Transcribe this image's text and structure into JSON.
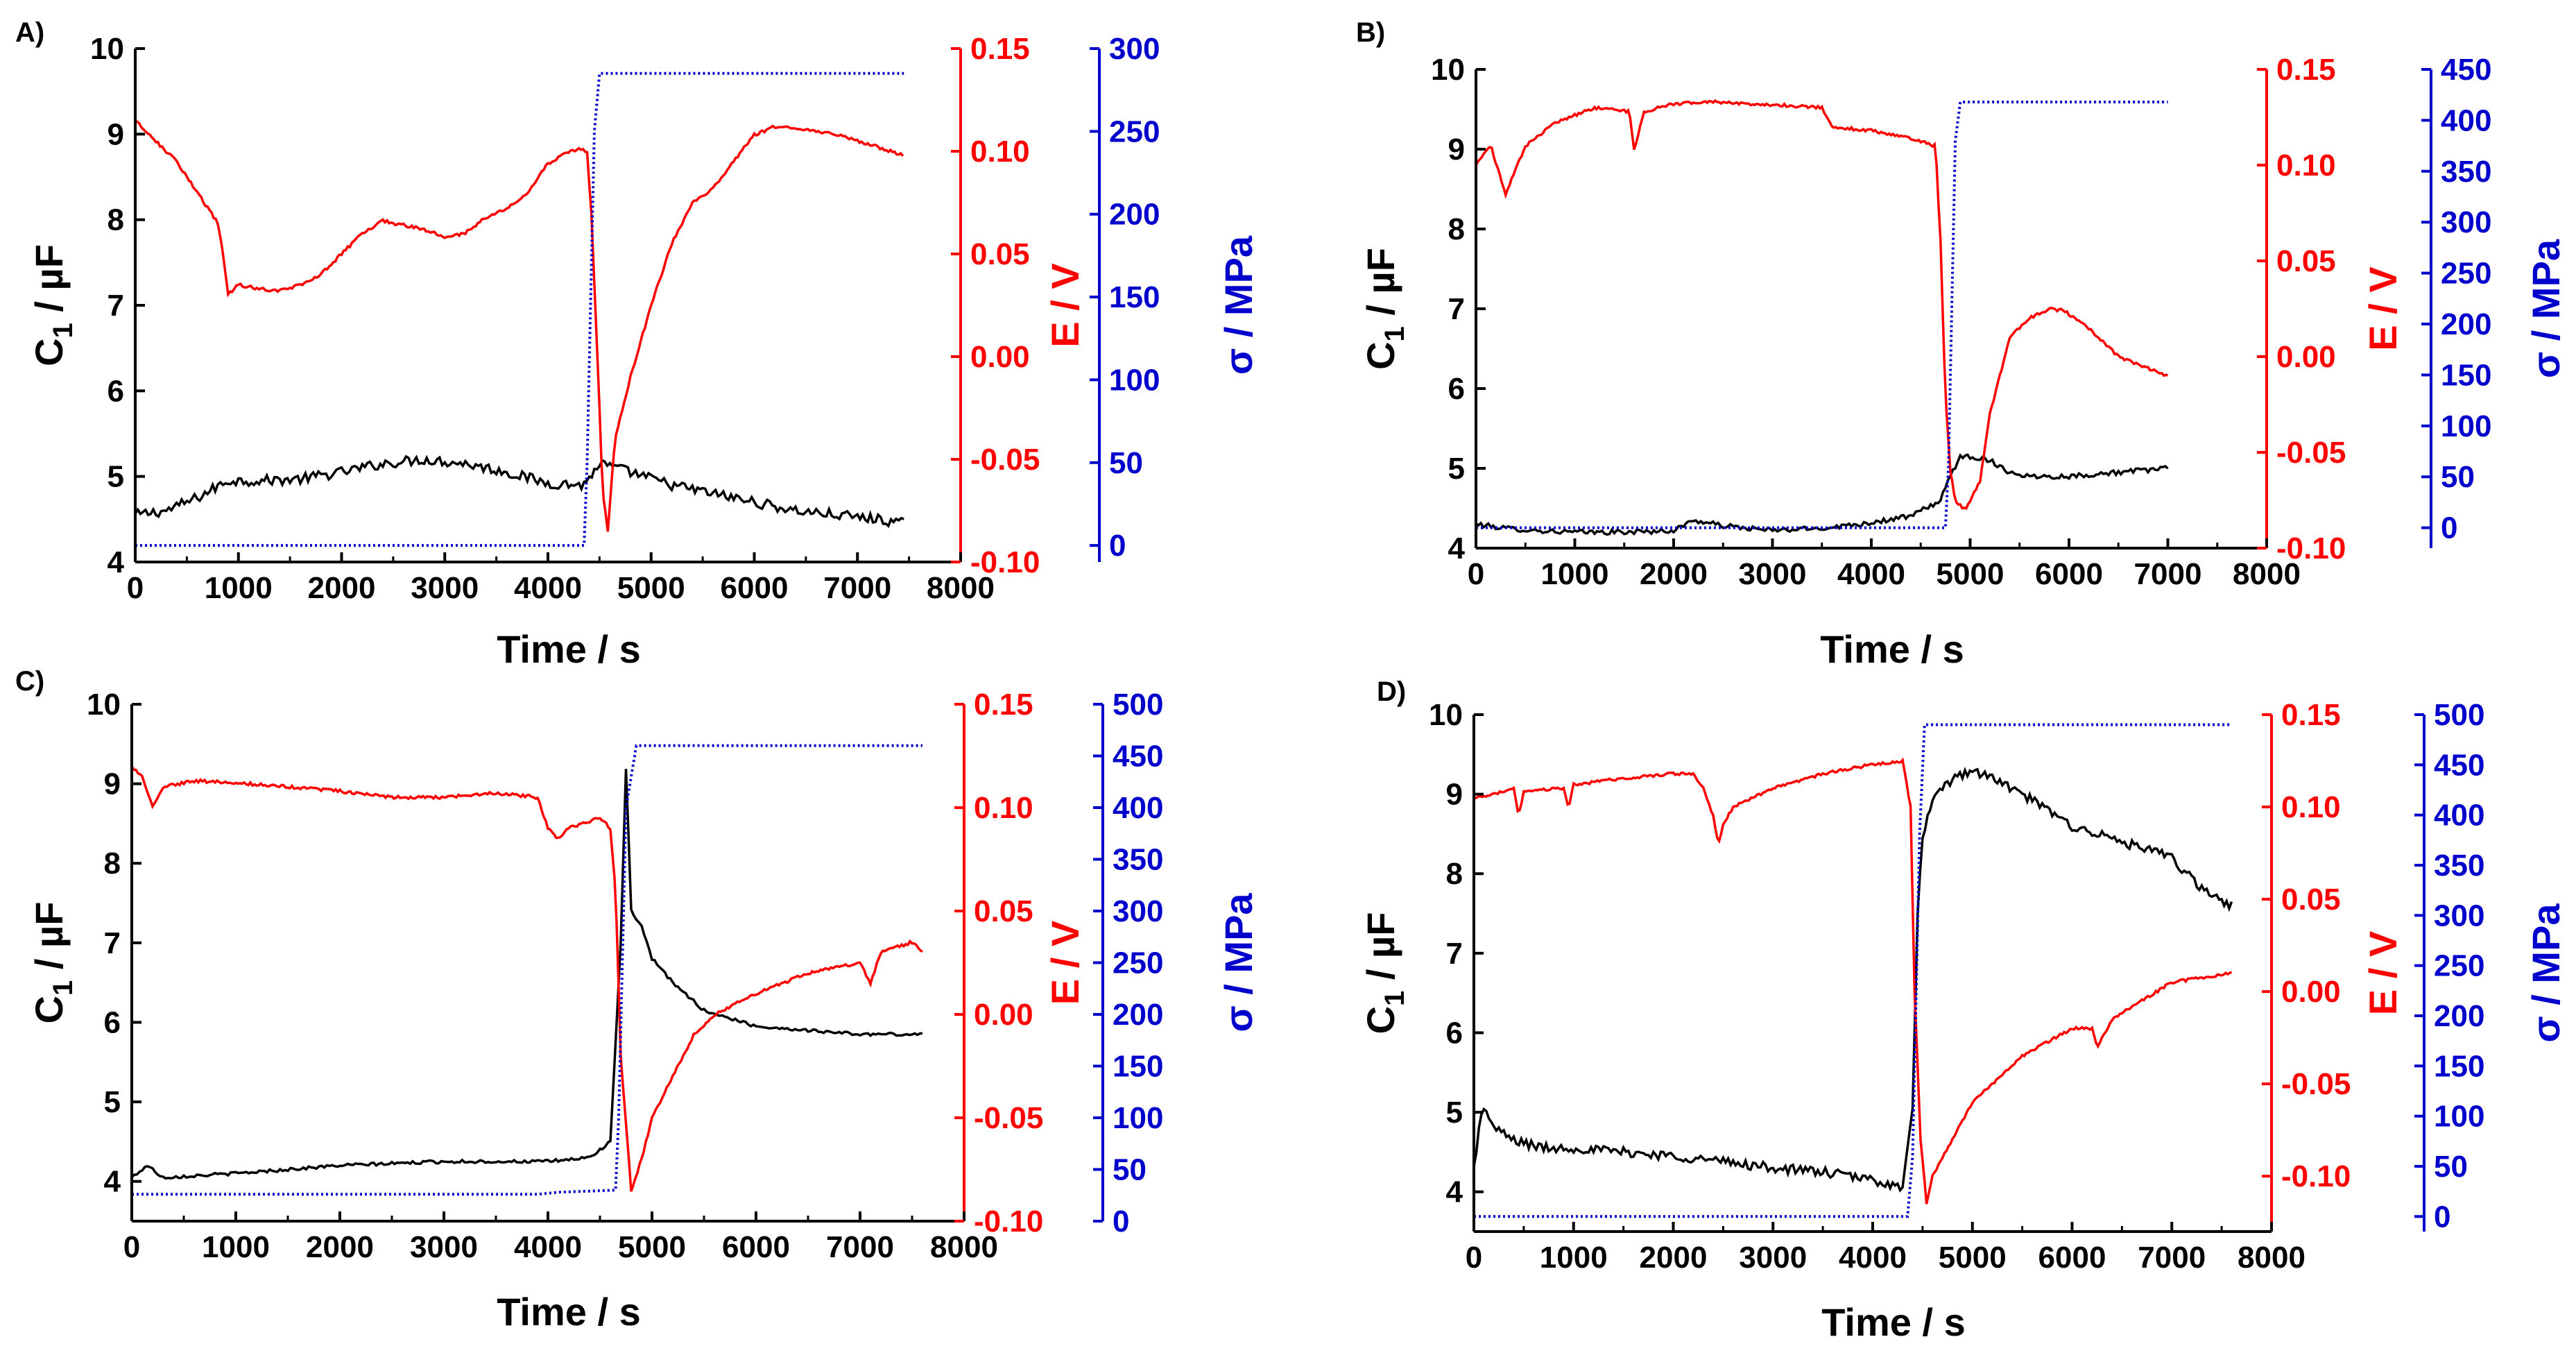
{
  "colors": {
    "left": "#000000",
    "right1": "#ff0000",
    "right2": "#0000cc"
  },
  "chart_data": [
    {
      "type": "line",
      "panel_label": "A)",
      "xlabel": "Time / s",
      "ylabel_left": {
        "main": "C",
        "sub": "1",
        "unit": " / µF"
      },
      "ylabel_right1": "E / V",
      "ylabel_right2": "σ / MPa",
      "xlim": [
        0,
        8000
      ],
      "xticks": [
        0,
        1000,
        2000,
        3000,
        4000,
        5000,
        6000,
        7000,
        8000
      ],
      "xtick_labels": [
        "0",
        "1000",
        "2000",
        "3000",
        "4000",
        "5000",
        "6000",
        "7000",
        "8000"
      ],
      "ylim_left": [
        4,
        10
      ],
      "yticks_left": [
        4,
        5,
        6,
        7,
        8,
        9,
        10
      ],
      "ytick_labels_left": [
        "4",
        "5",
        "6",
        "7",
        "8",
        "9",
        "10"
      ],
      "ylim_right1": [
        -0.1,
        0.15
      ],
      "yticks_right1": [
        -0.1,
        -0.05,
        0.0,
        0.05,
        0.1,
        0.15
      ],
      "ytick_labels_right1": [
        "-0.10",
        "-0.05",
        "0.00",
        "0.05",
        "0.10",
        "0.15"
      ],
      "ylim_right2": [
        -10,
        300
      ],
      "yticks_right2": [
        0,
        50,
        100,
        150,
        200,
        250,
        300
      ],
      "ytick_labels_right2": [
        "0",
        "50",
        "100",
        "150",
        "200",
        "250",
        "300"
      ],
      "series": [
        {
          "axis": "left",
          "style": "solid",
          "noise": 0.06,
          "x": [
            0,
            300,
            600,
            900,
            1200,
            1600,
            2000,
            2400,
            2800,
            3200,
            3600,
            4000,
            4350,
            4500,
            4800,
            5200,
            5600,
            6000,
            6400,
            6800,
            7200,
            7450
          ],
          "y": [
            4.55,
            4.6,
            4.75,
            4.95,
            4.95,
            4.97,
            5.05,
            5.15,
            5.2,
            5.15,
            5.05,
            4.92,
            4.9,
            5.15,
            5.05,
            4.9,
            4.8,
            4.7,
            4.6,
            4.55,
            4.5,
            4.45
          ]
        },
        {
          "axis": "right1",
          "style": "solid",
          "x": [
            0,
            200,
            400,
            600,
            800,
            850,
            900,
            1000,
            1200,
            1400,
            1600,
            1800,
            2000,
            2200,
            2400,
            2800,
            3000,
            3200,
            3400,
            3600,
            3800,
            4000,
            4200,
            4300,
            4380,
            4420,
            4480,
            4530,
            4580,
            4650,
            4800,
            5000,
            5200,
            5400,
            5600,
            5800,
            6000,
            6200,
            6400,
            6800,
            7200,
            7450
          ],
          "y": [
            0.115,
            0.105,
            0.095,
            0.08,
            0.065,
            0.05,
            0.03,
            0.035,
            0.033,
            0.032,
            0.035,
            0.04,
            0.05,
            0.06,
            0.066,
            0.062,
            0.058,
            0.06,
            0.068,
            0.072,
            0.08,
            0.094,
            0.1,
            0.101,
            0.1,
            0.07,
            0.0,
            -0.065,
            -0.085,
            -0.04,
            -0.01,
            0.025,
            0.055,
            0.075,
            0.082,
            0.095,
            0.108,
            0.112,
            0.111,
            0.108,
            0.102,
            0.098
          ]
        },
        {
          "axis": "right2",
          "style": "dotted",
          "x": [
            0,
            4350,
            4380,
            4450,
            4500,
            7450
          ],
          "y": [
            0,
            0,
            50,
            250,
            285,
            285
          ]
        }
      ]
    },
    {
      "type": "line",
      "panel_label": "B)",
      "xlabel": "Time / s",
      "ylabel_left": {
        "main": "C",
        "sub": "1",
        "unit": " / µF"
      },
      "ylabel_right1": "E / V",
      "ylabel_right2": "σ / MPa",
      "xlim": [
        0,
        8000
      ],
      "xticks": [
        0,
        1000,
        2000,
        3000,
        4000,
        5000,
        6000,
        7000,
        8000
      ],
      "xtick_labels": [
        "0",
        "1000",
        "2000",
        "3000",
        "4000",
        "5000",
        "6000",
        "7000",
        "8000"
      ],
      "ylim_left": [
        4,
        10
      ],
      "yticks_left": [
        4,
        5,
        6,
        7,
        8,
        9,
        10
      ],
      "ytick_labels_left": [
        "4",
        "5",
        "6",
        "7",
        "8",
        "9",
        "10"
      ],
      "ylim_right1": [
        -0.1,
        0.15
      ],
      "yticks_right1": [
        -0.1,
        -0.05,
        0.0,
        0.05,
        0.1,
        0.15
      ],
      "ytick_labels_right1": [
        "-0.10",
        "-0.05",
        "0.00",
        "0.05",
        "0.10",
        "0.15"
      ],
      "ylim_right2": [
        -20,
        450
      ],
      "yticks_right2": [
        0,
        50,
        100,
        150,
        200,
        250,
        300,
        350,
        400,
        450
      ],
      "ytick_labels_right2": [
        "0",
        "50",
        "100",
        "150",
        "200",
        "250",
        "300",
        "350",
        "400",
        "450"
      ],
      "series": [
        {
          "axis": "left",
          "style": "solid",
          "noise": 0.03,
          "x": [
            0,
            300,
            600,
            1000,
            1500,
            2000,
            2200,
            2500,
            3000,
            3500,
            4000,
            4400,
            4700,
            4800,
            4900,
            5000,
            5200,
            5400,
            5600,
            6000,
            6500,
            7000
          ],
          "y": [
            4.3,
            4.25,
            4.22,
            4.2,
            4.2,
            4.22,
            4.35,
            4.28,
            4.22,
            4.25,
            4.32,
            4.4,
            4.6,
            4.9,
            5.15,
            5.15,
            5.1,
            4.95,
            4.9,
            4.9,
            4.95,
            5.0
          ]
        },
        {
          "axis": "right1",
          "style": "solid",
          "x": [
            0,
            150,
            300,
            500,
            800,
            1200,
            1550,
            1600,
            1700,
            2000,
            2400,
            2800,
            3200,
            3500,
            3600,
            4000,
            4400,
            4650,
            4700,
            4750,
            4800,
            4850,
            4950,
            5100,
            5200,
            5400,
            5600,
            5800,
            5950,
            6200,
            6500,
            7000
          ],
          "y": [
            0.1,
            0.11,
            0.085,
            0.11,
            0.122,
            0.13,
            0.128,
            0.108,
            0.128,
            0.132,
            0.133,
            0.132,
            0.131,
            0.13,
            0.12,
            0.118,
            0.114,
            0.11,
            0.06,
            -0.02,
            -0.06,
            -0.075,
            -0.08,
            -0.065,
            -0.03,
            0.01,
            0.02,
            0.025,
            0.024,
            0.015,
            0.0,
            -0.01
          ]
        },
        {
          "axis": "right2",
          "style": "dotted",
          "x": [
            0,
            4750,
            4780,
            4850,
            4900,
            7000
          ],
          "y": [
            0,
            0,
            60,
            380,
            418,
            418
          ]
        }
      ]
    },
    {
      "type": "line",
      "panel_label": "C)",
      "xlabel": "Time / s",
      "ylabel_left": {
        "main": "C",
        "sub": "1",
        "unit": " / µF"
      },
      "ylabel_right1": "E / V",
      "ylabel_right2": "σ / MPa",
      "xlim": [
        0,
        8000
      ],
      "xticks": [
        0,
        1000,
        2000,
        3000,
        4000,
        5000,
        6000,
        7000,
        8000
      ],
      "xtick_labels": [
        "0",
        "1000",
        "2000",
        "3000",
        "4000",
        "5000",
        "6000",
        "7000",
        "8000"
      ],
      "ylim_left": [
        3.5,
        10
      ],
      "yticks_left": [
        4,
        5,
        6,
        7,
        8,
        9,
        10
      ],
      "ytick_labels_left": [
        "4",
        "5",
        "6",
        "7",
        "8",
        "9",
        "10"
      ],
      "ylim_right1": [
        -0.1,
        0.15
      ],
      "yticks_right1": [
        -0.1,
        -0.05,
        0.0,
        0.05,
        0.1,
        0.15
      ],
      "ytick_labels_right1": [
        "-0.10",
        "-0.05",
        "0.00",
        "0.05",
        "0.10",
        "0.15"
      ],
      "ylim_right2": [
        0,
        500
      ],
      "yticks_right2": [
        0,
        50,
        100,
        150,
        200,
        250,
        300,
        350,
        400,
        450,
        500
      ],
      "ytick_labels_right2": [
        "0",
        "50",
        "100",
        "150",
        "200",
        "250",
        "300",
        "350",
        "400",
        "450",
        "500"
      ],
      "series": [
        {
          "axis": "left",
          "style": "solid",
          "noise": 0.02,
          "x": [
            0,
            150,
            300,
            1000,
            2000,
            3000,
            4000,
            4400,
            4600,
            4700,
            4750,
            4800,
            4900,
            5000,
            5200,
            5500,
            6000,
            6500,
            7000,
            7600
          ],
          "y": [
            4.05,
            4.2,
            4.05,
            4.1,
            4.2,
            4.25,
            4.25,
            4.3,
            4.5,
            7.0,
            9.2,
            7.4,
            7.2,
            6.8,
            6.5,
            6.15,
            5.95,
            5.9,
            5.85,
            5.85
          ]
        },
        {
          "axis": "right1",
          "style": "solid",
          "x": [
            0,
            100,
            200,
            300,
            600,
            1000,
            1500,
            2000,
            2500,
            3000,
            3500,
            3900,
            4000,
            4100,
            4200,
            4500,
            4600,
            4650,
            4700,
            4800,
            4900,
            5000,
            5200,
            5400,
            5600,
            5800,
            6000,
            6500,
            7000,
            7100,
            7200,
            7500,
            7600
          ],
          "y": [
            0.12,
            0.115,
            0.1,
            0.11,
            0.113,
            0.112,
            0.11,
            0.108,
            0.105,
            0.105,
            0.107,
            0.105,
            0.09,
            0.085,
            0.09,
            0.095,
            0.09,
            0.06,
            -0.02,
            -0.085,
            -0.07,
            -0.05,
            -0.03,
            -0.01,
            0.0,
            0.005,
            0.01,
            0.02,
            0.025,
            0.015,
            0.03,
            0.035,
            0.03
          ]
        },
        {
          "axis": "right2",
          "style": "dotted",
          "x": [
            0,
            3900,
            4100,
            4650,
            4680,
            4750,
            4850,
            7600
          ],
          "y": [
            26,
            26,
            28,
            30,
            100,
            400,
            460,
            460
          ]
        }
      ]
    },
    {
      "type": "line",
      "panel_label": "D)",
      "xlabel": "Time / s",
      "ylabel_left": {
        "main": "C",
        "sub": "1",
        "unit": " / µF"
      },
      "ylabel_right1": "E / V",
      "ylabel_right2": "σ / MPa",
      "xlim": [
        0,
        8000
      ],
      "xticks": [
        0,
        1000,
        2000,
        3000,
        4000,
        5000,
        6000,
        7000,
        8000
      ],
      "xtick_labels": [
        "0",
        "1000",
        "2000",
        "3000",
        "4000",
        "5000",
        "6000",
        "7000",
        "8000"
      ],
      "ylim_left": [
        3.5,
        10
      ],
      "yticks_left": [
        4,
        5,
        6,
        7,
        8,
        9,
        10
      ],
      "ytick_labels_left": [
        "4",
        "5",
        "6",
        "7",
        "8",
        "9",
        "10"
      ],
      "ylim_right1": [
        -0.13,
        0.15
      ],
      "yticks_right1": [
        -0.1,
        -0.05,
        0.0,
        0.05,
        0.1,
        0.15
      ],
      "ytick_labels_right1": [
        "-0.10",
        "-0.05",
        "0.00",
        "0.05",
        "0.10",
        "0.15"
      ],
      "ylim_right2": [
        -15,
        500
      ],
      "yticks_right2": [
        0,
        50,
        100,
        150,
        200,
        250,
        300,
        350,
        400,
        450,
        500
      ],
      "ytick_labels_right2": [
        "0",
        "50",
        "100",
        "150",
        "200",
        "250",
        "300",
        "350",
        "400",
        "450",
        "500"
      ],
      "series": [
        {
          "axis": "left",
          "style": "solid",
          "noise": 0.06,
          "x": [
            0,
            60,
            120,
            200,
            400,
            700,
            1000,
            1500,
            2000,
            2500,
            3000,
            3500,
            4000,
            4300,
            4400,
            4450,
            4500,
            4600,
            4800,
            5000,
            5200,
            5500,
            6000,
            6500,
            7000,
            7300,
            7600
          ],
          "y": [
            4.3,
            4.9,
            5.05,
            4.8,
            4.65,
            4.55,
            4.55,
            4.5,
            4.45,
            4.38,
            4.3,
            4.25,
            4.15,
            4.05,
            5.0,
            7.5,
            8.5,
            8.9,
            9.2,
            9.3,
            9.2,
            9.0,
            8.6,
            8.4,
            8.2,
            7.8,
            7.6
          ]
        },
        {
          "axis": "right1",
          "style": "solid",
          "x": [
            0,
            200,
            400,
            450,
            500,
            800,
            900,
            950,
            1000,
            1400,
            1800,
            2000,
            2200,
            2300,
            2400,
            2450,
            2500,
            2600,
            3000,
            3500,
            4000,
            4300,
            4380,
            4420,
            4480,
            4540,
            4600,
            4700,
            5000,
            5500,
            6000,
            6200,
            6250,
            6400,
            7000,
            7600
          ],
          "y": [
            0.105,
            0.107,
            0.11,
            0.095,
            0.108,
            0.11,
            0.11,
            0.1,
            0.112,
            0.115,
            0.117,
            0.118,
            0.118,
            0.11,
            0.095,
            0.08,
            0.09,
            0.1,
            0.11,
            0.118,
            0.123,
            0.125,
            0.1,
            0.0,
            -0.08,
            -0.115,
            -0.1,
            -0.09,
            -0.06,
            -0.035,
            -0.02,
            -0.02,
            -0.03,
            -0.015,
            0.005,
            0.01
          ]
        },
        {
          "axis": "right2",
          "style": "dotted",
          "x": [
            0,
            4350,
            4400,
            4470,
            4520,
            7600
          ],
          "y": [
            0,
            0,
            60,
            380,
            490,
            490
          ]
        }
      ]
    }
  ]
}
